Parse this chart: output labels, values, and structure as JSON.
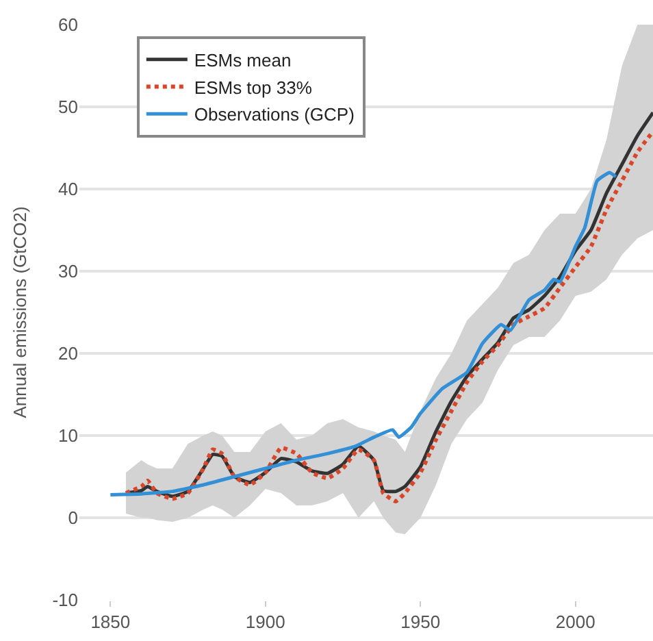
{
  "chart_data": {
    "type": "line",
    "ylabel": "Annual emissions (GtCO2)",
    "xlim": [
      1840,
      2025
    ],
    "xticks": [
      1850,
      1900,
      1950,
      2000
    ],
    "ylim": [
      -10,
      60
    ],
    "yticks": [
      -10,
      0,
      10,
      20,
      30,
      40,
      50,
      60
    ],
    "grid": "y",
    "legend": "top left",
    "marker": "none",
    "series": [
      {
        "name": "ESMs mean",
        "color": "#333333",
        "line_style": "solid",
        "x": [
          1855,
          1860,
          1862,
          1865,
          1870,
          1875,
          1880,
          1883,
          1886,
          1890,
          1895,
          1900,
          1905,
          1910,
          1915,
          1920,
          1925,
          1930,
          1935,
          1938,
          1942,
          1945,
          1950,
          1955,
          1960,
          1965,
          1970,
          1975,
          1980,
          1985,
          1990,
          1995,
          2000,
          2005,
          2010,
          2015,
          2020,
          2025
        ],
        "values": [
          3.0,
          3.3,
          3.8,
          3.2,
          2.6,
          3.2,
          6.0,
          7.7,
          7.5,
          5.0,
          4.3,
          5.5,
          7.2,
          6.8,
          5.7,
          5.4,
          6.5,
          8.7,
          7.0,
          3.3,
          3.2,
          3.8,
          6.2,
          10.5,
          14.2,
          17.2,
          19.3,
          21.3,
          24.3,
          25.3,
          27.0,
          29.3,
          32.5,
          35.0,
          39.5,
          43.0,
          46.5,
          49.3
        ],
        "lower": [
          0.5,
          0,
          0,
          -0.3,
          -0.5,
          0,
          1,
          1.5,
          1,
          0,
          1.5,
          3.5,
          3,
          1.5,
          1.5,
          2,
          3,
          0,
          2,
          0,
          -1.8,
          -2,
          0,
          4,
          9,
          12,
          14,
          18,
          21,
          22,
          22,
          24,
          27,
          27.5,
          29,
          32,
          34,
          35
        ],
        "upper": [
          5.5,
          7,
          6.5,
          6,
          6,
          9,
          10,
          10.5,
          10,
          8,
          8,
          10.5,
          11.5,
          9.5,
          10,
          11.5,
          12,
          11,
          10.5,
          10,
          9.5,
          8,
          13,
          17,
          20,
          24,
          26,
          28,
          31,
          32,
          35,
          37,
          37,
          40,
          46,
          55,
          60,
          60
        ]
      },
      {
        "name": "ESMs top 33%",
        "color": "#d9472b",
        "line_style": "dotted",
        "x": [
          1855,
          1860,
          1862,
          1865,
          1870,
          1875,
          1880,
          1883,
          1886,
          1890,
          1895,
          1900,
          1905,
          1910,
          1915,
          1920,
          1925,
          1930,
          1935,
          1938,
          1942,
          1945,
          1950,
          1955,
          1960,
          1965,
          1970,
          1975,
          1980,
          1985,
          1990,
          1995,
          2000,
          2005,
          2010,
          2015,
          2020,
          2025
        ],
        "values": [
          3.0,
          3.8,
          4.5,
          3.0,
          2.3,
          3.0,
          6.0,
          8.3,
          7.8,
          5.0,
          4.0,
          5.5,
          8.5,
          7.8,
          5.5,
          4.8,
          6.0,
          8.3,
          7.0,
          3.0,
          2.0,
          3.0,
          5.5,
          9.5,
          13.0,
          16.5,
          19.0,
          21.0,
          23.5,
          24.5,
          25.5,
          28.0,
          30.5,
          33.0,
          37.5,
          41.0,
          44.5,
          47.0
        ]
      },
      {
        "name": "Observations (GCP)",
        "color": "#3390d6",
        "line_style": "solid",
        "x": [
          1850,
          1860,
          1870,
          1880,
          1890,
          1900,
          1910,
          1920,
          1929,
          1935,
          1941,
          1943,
          1947,
          1950,
          1957,
          1965,
          1970,
          1976,
          1979,
          1985,
          1990,
          1993,
          1995,
          2000,
          2003,
          2007,
          2011,
          2013
        ],
        "values": [
          2.8,
          2.9,
          3.2,
          4.0,
          5.0,
          6.0,
          7.0,
          7.8,
          8.7,
          9.8,
          10.7,
          9.8,
          11.0,
          12.7,
          15.7,
          17.7,
          21.2,
          23.5,
          22.8,
          26.5,
          27.7,
          29.0,
          28.7,
          33.0,
          35.3,
          41.0,
          42.0,
          41.5
        ]
      }
    ]
  }
}
